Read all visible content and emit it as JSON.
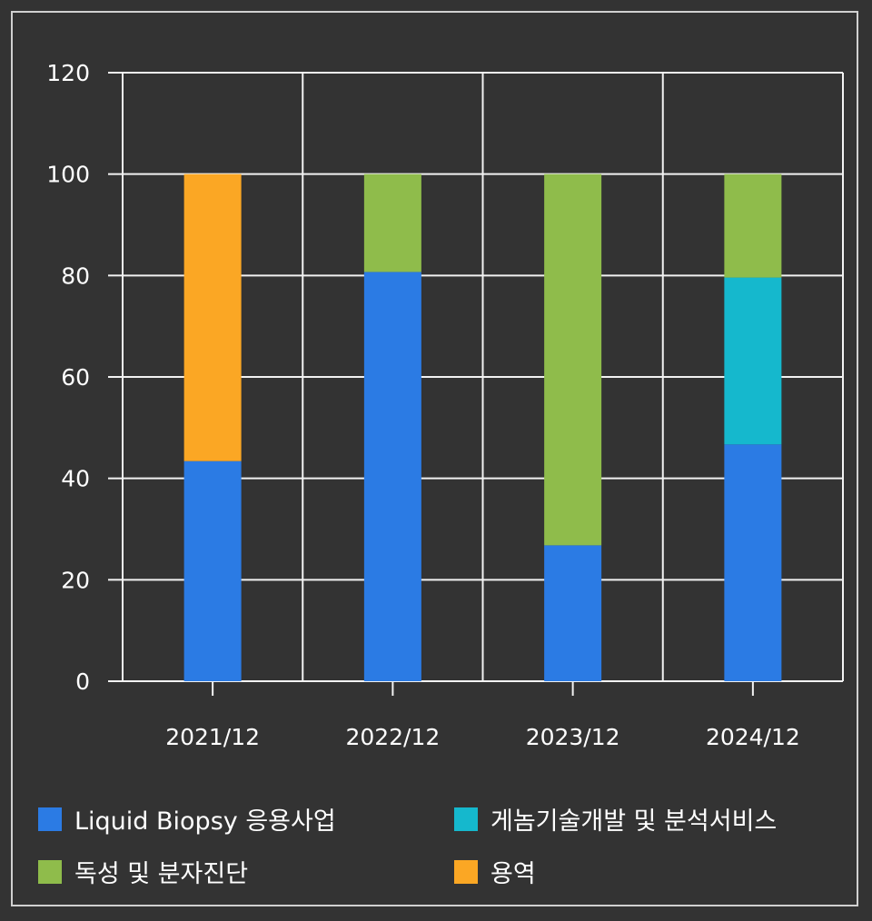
{
  "chart_data": {
    "type": "bar",
    "stacked": true,
    "categories": [
      "2021/12",
      "2022/12",
      "2023/12",
      "2024/12"
    ],
    "ylim": [
      0,
      120
    ],
    "yticks": [
      0,
      20,
      40,
      60,
      80,
      100,
      120
    ],
    "grid": true,
    "legend_position": "bottom",
    "series": [
      {
        "name": "Liquid Biopsy 응용사업",
        "color": "#2b7be4",
        "values": [
          43.4,
          80.7,
          26.8,
          46.7
        ]
      },
      {
        "name": "게놈기술개발 및 분석서비스",
        "color": "#15b8cd",
        "values": [
          0,
          0,
          0,
          32.9
        ]
      },
      {
        "name": "독성 및 분자진단",
        "color": "#8fbc4b",
        "values": [
          0,
          19.3,
          73.2,
          20.4
        ]
      },
      {
        "name": "용역",
        "color": "#fba724",
        "values": [
          56.6,
          0,
          0,
          0
        ]
      }
    ],
    "title": "",
    "xlabel": "",
    "ylabel": ""
  }
}
